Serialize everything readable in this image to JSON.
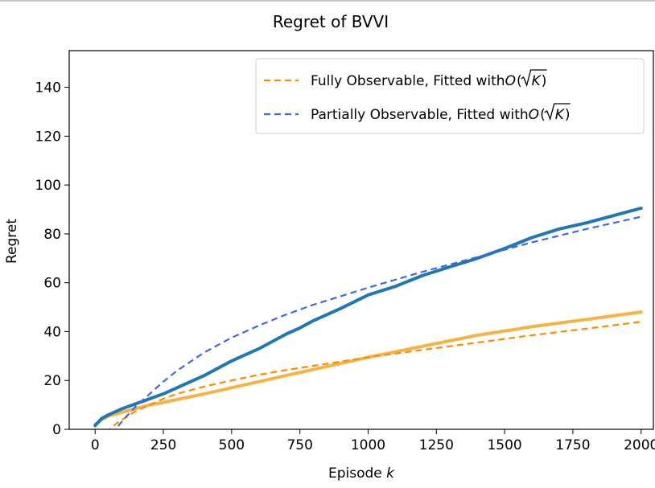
{
  "chart_data": {
    "type": "line",
    "title": "Regret of BVVI",
    "xlabel": "Episode",
    "xlabel_var": "k",
    "ylabel": "Regret",
    "xlim": [
      -95,
      2045
    ],
    "ylim": [
      0,
      155
    ],
    "xticks": [
      0,
      250,
      500,
      750,
      1000,
      1250,
      1500,
      1750,
      2000
    ],
    "yticks": [
      0,
      20,
      40,
      60,
      80,
      100,
      120,
      140
    ],
    "grid": false,
    "legend_position": "top-right",
    "legend": [
      {
        "prefix": "Fully Observable, Fitted with ",
        "math": "O",
        "radicand": "K",
        "color": "#ff8c00"
      },
      {
        "prefix": "Partially Observable, Fitted with ",
        "math": "O",
        "radicand": "K",
        "color": "#4169e1"
      }
    ],
    "series": [
      {
        "role": "partially-observable-regret",
        "color": "#1f77b4",
        "style": "solid",
        "x": [
          0,
          25,
          50,
          100,
          150,
          200,
          250,
          300,
          400,
          500,
          600,
          700,
          750,
          800,
          900,
          1000,
          1100,
          1200,
          1300,
          1400,
          1500,
          1600,
          1700,
          1800,
          1900,
          2000
        ],
        "y": [
          1.5,
          4.5,
          6,
          8.5,
          10.5,
          12.5,
          14.5,
          17,
          22,
          28,
          33,
          39,
          41.5,
          44.5,
          49.5,
          55,
          58.5,
          63,
          66.5,
          70,
          74,
          78.5,
          82,
          84.5,
          87.5,
          90.5
        ]
      },
      {
        "role": "partially-observable-fit",
        "color": "#4169e1",
        "style": "dashed",
        "x": [
          60,
          75,
          100,
          125,
          150,
          200,
          250,
          300,
          400,
          500,
          600,
          700,
          800,
          900,
          1000,
          1200,
          1400,
          1600,
          1800,
          2000
        ],
        "y": [
          -2,
          0,
          3.5,
          6.5,
          9.5,
          14.5,
          19.5,
          24,
          31.5,
          37.5,
          42.5,
          47,
          51,
          54.5,
          58,
          64.5,
          70.5,
          76.5,
          82,
          87
        ]
      },
      {
        "role": "fully-observable-regret",
        "color": "#f5a623",
        "style": "solid",
        "x": [
          0,
          25,
          50,
          100,
          150,
          200,
          250,
          300,
          400,
          500,
          600,
          700,
          800,
          900,
          1000,
          1200,
          1400,
          1600,
          1800,
          2000
        ],
        "y": [
          2,
          4,
          5.5,
          7,
          8.5,
          10,
          11,
          12.2,
          14.5,
          17,
          19.5,
          22,
          24.5,
          27,
          29.5,
          34,
          38.5,
          42,
          45,
          48
        ]
      },
      {
        "role": "fully-observable-fit",
        "color": "#ff8c00",
        "style": "dashed",
        "x": [
          40,
          60,
          80,
          100,
          150,
          200,
          250,
          300,
          400,
          500,
          600,
          700,
          800,
          1000,
          1200,
          1400,
          1600,
          1800,
          2000
        ],
        "y": [
          -1.5,
          0.8,
          2.5,
          4,
          7.5,
          10,
          12.5,
          14.5,
          17.5,
          20,
          22.3,
          24.3,
          26,
          29.5,
          32.5,
          35.5,
          38.5,
          41.2,
          44
        ]
      }
    ]
  }
}
